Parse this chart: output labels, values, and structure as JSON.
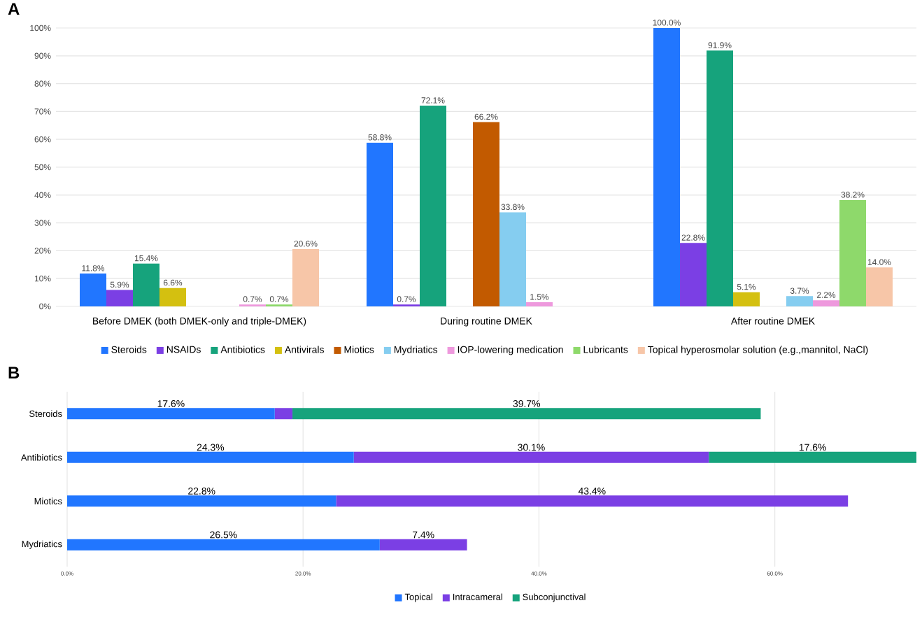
{
  "chart_data": [
    {
      "type": "bar",
      "title": "A",
      "categories": [
        "Before DMEK (both DMEK-only and triple-DMEK)",
        "During routine DMEK",
        "After routine DMEK"
      ],
      "series": [
        {
          "name": "Steroids",
          "color": "#2176ff",
          "values": [
            11.8,
            58.8,
            100.0
          ],
          "value_labels": [
            "11.8%",
            "58.8%",
            "100.0%"
          ]
        },
        {
          "name": "NSAIDs",
          "color": "#7b3fe4",
          "values": [
            5.9,
            0.7,
            22.8
          ],
          "value_labels": [
            "5.9%",
            "0.7%",
            "22.8%"
          ]
        },
        {
          "name": "Antibiotics",
          "color": "#16a37c",
          "values": [
            15.4,
            72.1,
            91.9
          ],
          "value_labels": [
            "15.4%",
            "72.1%",
            "91.9%"
          ]
        },
        {
          "name": "Antivirals",
          "color": "#d4c010",
          "values": [
            6.6,
            null,
            5.1
          ],
          "value_labels": [
            "6.6%",
            null,
            "5.1%"
          ]
        },
        {
          "name": "Miotics",
          "color": "#c25a00",
          "values": [
            null,
            66.2,
            null
          ],
          "value_labels": [
            null,
            "66.2%",
            null
          ]
        },
        {
          "name": "Mydriatics",
          "color": "#85cdf0",
          "values": [
            null,
            33.8,
            3.7
          ],
          "value_labels": [
            null,
            "33.8%",
            "3.7%"
          ]
        },
        {
          "name": "IOP-lowering medication",
          "color": "#ee99dd",
          "values": [
            0.7,
            1.5,
            2.2
          ],
          "value_labels": [
            "0.7%",
            "1.5%",
            "2.2%"
          ]
        },
        {
          "name": "Lubricants",
          "color": "#8ed96b",
          "values": [
            0.7,
            null,
            38.2
          ],
          "value_labels": [
            "0.7%",
            null,
            "38.2%"
          ]
        },
        {
          "name": "Topical hyperosmolar solution (e.g.,mannitol, NaCl)",
          "color": "#f7c6a8",
          "values": [
            20.6,
            null,
            14.0
          ],
          "value_labels": [
            "20.6%",
            null,
            "14.0%"
          ]
        }
      ],
      "ylim": [
        0,
        100
      ],
      "yticks": [
        {
          "value": 0,
          "label": "0%"
        },
        {
          "value": 10,
          "label": "10%"
        },
        {
          "value": 20,
          "label": "20%"
        },
        {
          "value": 30,
          "label": "30%"
        },
        {
          "value": 40,
          "label": "40%"
        },
        {
          "value": 50,
          "label": "50%"
        },
        {
          "value": 60,
          "label": "60%"
        },
        {
          "value": 70,
          "label": "70%"
        },
        {
          "value": 80,
          "label": "80%"
        },
        {
          "value": 90,
          "label": "90%"
        },
        {
          "value": 100,
          "label": "100%"
        }
      ],
      "grid": "y",
      "legend": "bottom"
    },
    {
      "type": "bar",
      "title": "B",
      "orientation": "horizontal",
      "stacked": true,
      "categories": [
        "Steroids",
        "Antibiotics",
        "Miotics",
        "Mydriatics"
      ],
      "series": [
        {
          "name": "Topical",
          "color": "#2176ff",
          "values": [
            17.6,
            24.3,
            22.8,
            26.5
          ],
          "value_labels": [
            "17.6%",
            "24.3%",
            "22.8%",
            "26.5%"
          ]
        },
        {
          "name": "Intracameral",
          "color": "#7b3fe4",
          "values": [
            1.5,
            30.1,
            43.4,
            7.4
          ],
          "value_labels": [
            null,
            "30.1%",
            "43.4%",
            "7.4%"
          ]
        },
        {
          "name": "Subconjunctival",
          "color": "#16a37c",
          "values": [
            39.7,
            17.6,
            null,
            null
          ],
          "value_labels": [
            "39.7%",
            "17.6%",
            null,
            null
          ]
        }
      ],
      "xlim": [
        0,
        72
      ],
      "xticks": [
        {
          "value": 0,
          "label": "0.0%"
        },
        {
          "value": 20,
          "label": "20.0%"
        },
        {
          "value": 40,
          "label": "40.0%"
        },
        {
          "value": 60,
          "label": "60.0%"
        }
      ],
      "grid": "x",
      "legend": "bottom"
    }
  ]
}
